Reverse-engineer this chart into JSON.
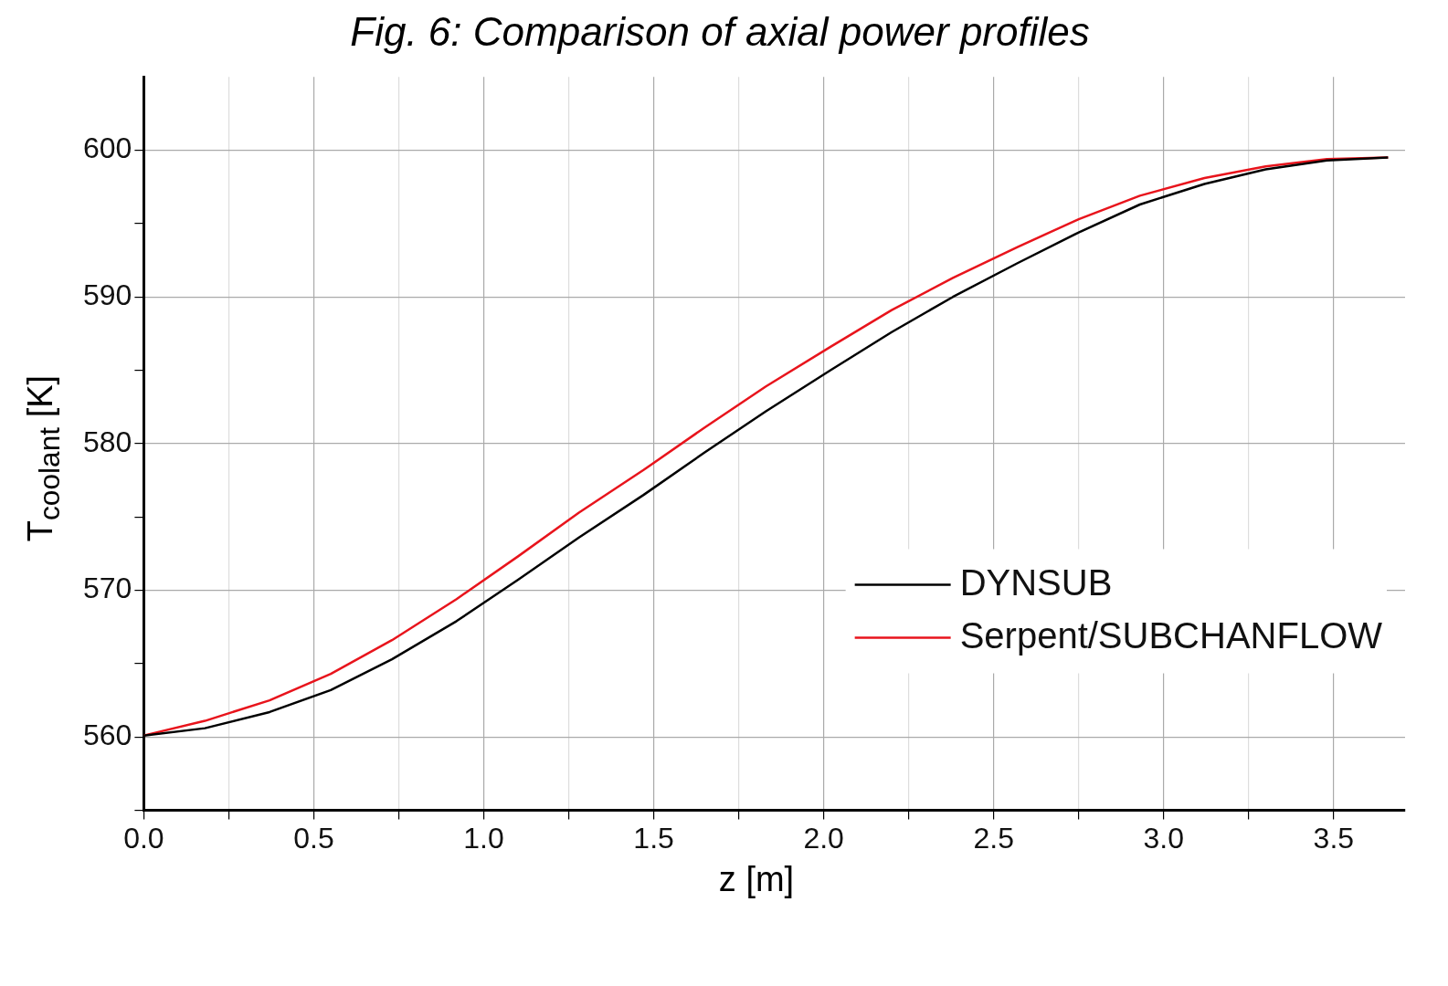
{
  "chart_data": {
    "type": "line",
    "title": "Fig. 6: Comparison of axial power profiles",
    "xlabel": "z [m]",
    "ylabel": "T$_{coolant}$ [K]",
    "xlim": [
      0,
      3.71
    ],
    "ylim": [
      555,
      605
    ],
    "xticks": [
      {
        "value": 0,
        "label": "0.0"
      },
      {
        "value": 0.25,
        "label": null
      },
      {
        "value": 0.5,
        "label": "0.5"
      },
      {
        "value": 0.75,
        "label": null
      },
      {
        "value": 1,
        "label": "1.0"
      },
      {
        "value": 1.25,
        "label": null
      },
      {
        "value": 1.5,
        "label": "1.5"
      },
      {
        "value": 1.75,
        "label": null
      },
      {
        "value": 2,
        "label": "2.0"
      },
      {
        "value": 2.25,
        "label": null
      },
      {
        "value": 2.5,
        "label": "2.5"
      },
      {
        "value": 2.75,
        "label": null
      },
      {
        "value": 3,
        "label": "3.0"
      },
      {
        "value": 3.25,
        "label": null
      },
      {
        "value": 3.5,
        "label": "3.5"
      }
    ],
    "yticks": [
      {
        "value": 555,
        "label": null
      },
      560,
      {
        "value": 565,
        "label": null
      },
      570,
      {
        "value": 575,
        "label": null
      },
      580,
      {
        "value": 585,
        "label": null
      },
      590,
      {
        "value": 595,
        "label": null
      },
      600
    ],
    "grid": true,
    "legend": "bottom right",
    "marker": "none",
    "line_style": "solid",
    "x": [
      0,
      0.18,
      0.37,
      0.55,
      0.73,
      0.92,
      1.1,
      1.28,
      1.47,
      1.65,
      1.83,
      2.02,
      2.2,
      2.38,
      2.57,
      2.75,
      2.93,
      3.12,
      3.3,
      3.48,
      3.66
    ],
    "series": [
      {
        "name": "DYNSUB",
        "color": "#000000",
        "values": [
          560.1,
          560.6,
          561.7,
          563.2,
          565.3,
          567.9,
          570.7,
          573.6,
          576.5,
          579.4,
          582.2,
          585,
          587.6,
          590,
          592.3,
          594.4,
          596.3,
          597.7,
          598.7,
          599.3,
          599.5
        ]
      },
      {
        "name": "Serpent/SUBCHANFLOW",
        "color": "#e8141c",
        "values": [
          560.1,
          561.1,
          562.5,
          564.3,
          566.6,
          569.4,
          572.3,
          575.3,
          578.2,
          581.1,
          583.9,
          586.6,
          589.1,
          591.3,
          593.4,
          595.3,
          596.9,
          598.1,
          598.9,
          599.4,
          599.5
        ]
      }
    ]
  }
}
